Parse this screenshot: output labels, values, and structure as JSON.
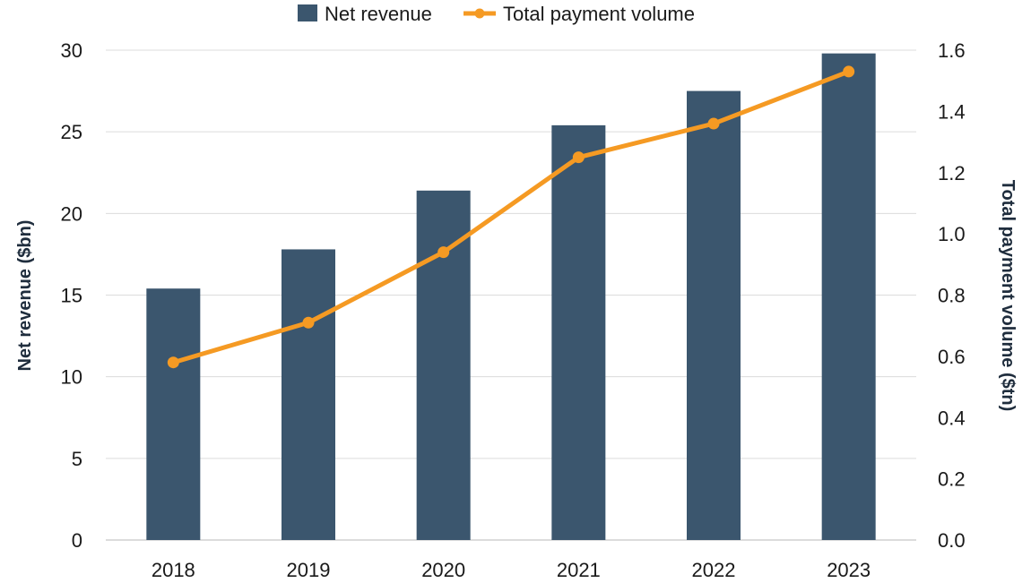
{
  "chart_data": {
    "type": "bar+line",
    "categories": [
      "2018",
      "2019",
      "2020",
      "2021",
      "2022",
      "2023"
    ],
    "series": [
      {
        "name": "Net revenue",
        "type": "bar",
        "axis": "left",
        "values": [
          15.4,
          17.8,
          21.4,
          25.4,
          27.5,
          29.8
        ],
        "color": "#3b566e"
      },
      {
        "name": "Total payment volume",
        "type": "line",
        "axis": "right",
        "values": [
          0.58,
          0.71,
          0.94,
          1.25,
          1.36,
          1.53
        ],
        "color": "#f59a23"
      }
    ],
    "y_left": {
      "label": "Net revenue ($bn)",
      "range": [
        0,
        30
      ],
      "ticks": [
        "0",
        "5",
        "10",
        "15",
        "20",
        "25",
        "30"
      ],
      "tick_values": [
        0,
        5,
        10,
        15,
        20,
        25,
        30
      ]
    },
    "y_right": {
      "label": "Total payment volume ($tn)",
      "range": [
        0,
        1.6
      ],
      "ticks": [
        "0.0",
        "0.2",
        "0.4",
        "0.6",
        "0.8",
        "1.0",
        "1.2",
        "1.4",
        "1.6"
      ],
      "tick_values": [
        0,
        0.2,
        0.4,
        0.6,
        0.8,
        1.0,
        1.2,
        1.4,
        1.6
      ]
    },
    "grid": true,
    "legend": "top-center",
    "gridColor": "#dcdcdc"
  }
}
